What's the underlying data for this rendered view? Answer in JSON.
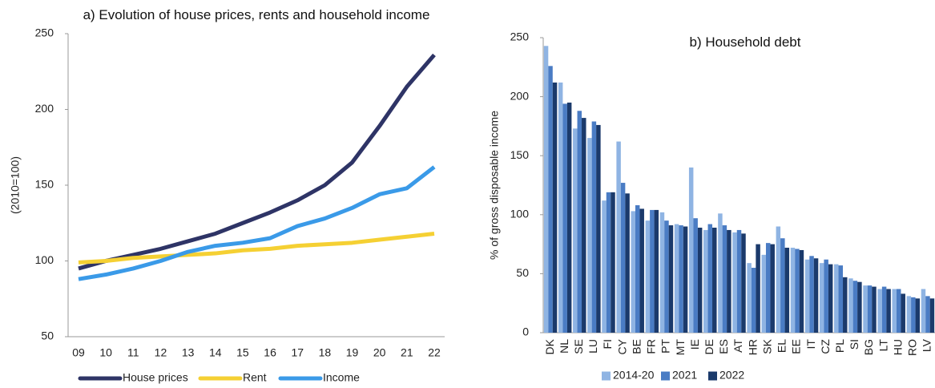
{
  "chart_data": [
    {
      "type": "line",
      "title": "a) Evolution of house prices, rents and household income",
      "y_label": "(2010=100)",
      "categories": [
        "09",
        "10",
        "11",
        "12",
        "13",
        "14",
        "15",
        "16",
        "17",
        "18",
        "19",
        "20",
        "21",
        "22"
      ],
      "series": [
        {
          "name": "House prices",
          "color": "#2e3466",
          "values": [
            95,
            100,
            104,
            108,
            113,
            118,
            125,
            132,
            140,
            150,
            165,
            189,
            215,
            236
          ]
        },
        {
          "name": "Rent",
          "color": "#f5d033",
          "values": [
            99,
            100,
            102,
            103,
            104,
            105,
            107,
            108,
            110,
            111,
            112,
            114,
            116,
            118
          ]
        },
        {
          "name": "Income",
          "color": "#3a9ae8",
          "values": [
            88,
            91,
            95,
            100,
            106,
            110,
            112,
            115,
            123,
            128,
            135,
            144,
            148,
            162
          ]
        }
      ],
      "ylim": [
        50,
        250
      ],
      "yticks": [
        50,
        100,
        150,
        200,
        250
      ],
      "grid": false,
      "legend": "bottom"
    },
    {
      "type": "bar",
      "title": "b) Household debt",
      "y_label": "% of gross disposable income",
      "categories": [
        "DK",
        "NL",
        "SE",
        "LU",
        "FI",
        "CY",
        "BE",
        "FR",
        "PT",
        "MT",
        "IE",
        "DE",
        "ES",
        "AT",
        "HR",
        "SK",
        "EL",
        "EE",
        "IT",
        "CZ",
        "PL",
        "SI",
        "BG",
        "LT",
        "HU",
        "RO",
        "LV"
      ],
      "series": [
        {
          "name": "2014-20",
          "color": "#8fb4e3",
          "values": [
            243,
            212,
            173,
            165,
            112,
            162,
            103,
            95,
            102,
            92,
            140,
            87,
            101,
            85,
            59,
            66,
            90,
            72,
            62,
            59,
            58,
            46,
            40,
            37,
            37,
            31,
            37
          ]
        },
        {
          "name": "2021",
          "color": "#4a7cc4",
          "values": [
            226,
            194,
            188,
            179,
            119,
            127,
            108,
            104,
            95,
            91,
            97,
            92,
            91,
            87,
            55,
            76,
            80,
            71,
            65,
            62,
            57,
            44,
            40,
            39,
            37,
            30,
            31
          ]
        },
        {
          "name": "2022",
          "color": "#1b3a6b",
          "values": [
            212,
            195,
            182,
            176,
            119,
            118,
            105,
            104,
            91,
            90,
            89,
            89,
            87,
            84,
            75,
            75,
            72,
            70,
            63,
            58,
            47,
            43,
            39,
            37,
            33,
            29,
            29
          ]
        }
      ],
      "ylim": [
        0,
        250
      ],
      "yticks": [
        0,
        50,
        100,
        150,
        200,
        250
      ],
      "grid": false,
      "legend": "bottom"
    }
  ]
}
